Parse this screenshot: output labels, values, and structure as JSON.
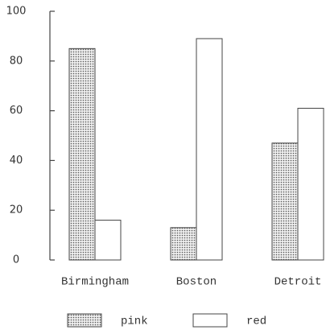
{
  "chart_data": {
    "type": "bar",
    "categories": [
      "Birmingham",
      "Boston",
      "Detroit"
    ],
    "series": [
      {
        "name": "pink",
        "color": "#555555",
        "pattern": "dots",
        "values": [
          85,
          13,
          47
        ]
      },
      {
        "name": "red",
        "color": "#ffffff",
        "values": [
          16,
          89,
          61
        ]
      }
    ],
    "ylim": [
      0,
      100
    ],
    "yticks": [
      0,
      20,
      40,
      60,
      80,
      100
    ],
    "grid": false,
    "legend": "bottom"
  }
}
